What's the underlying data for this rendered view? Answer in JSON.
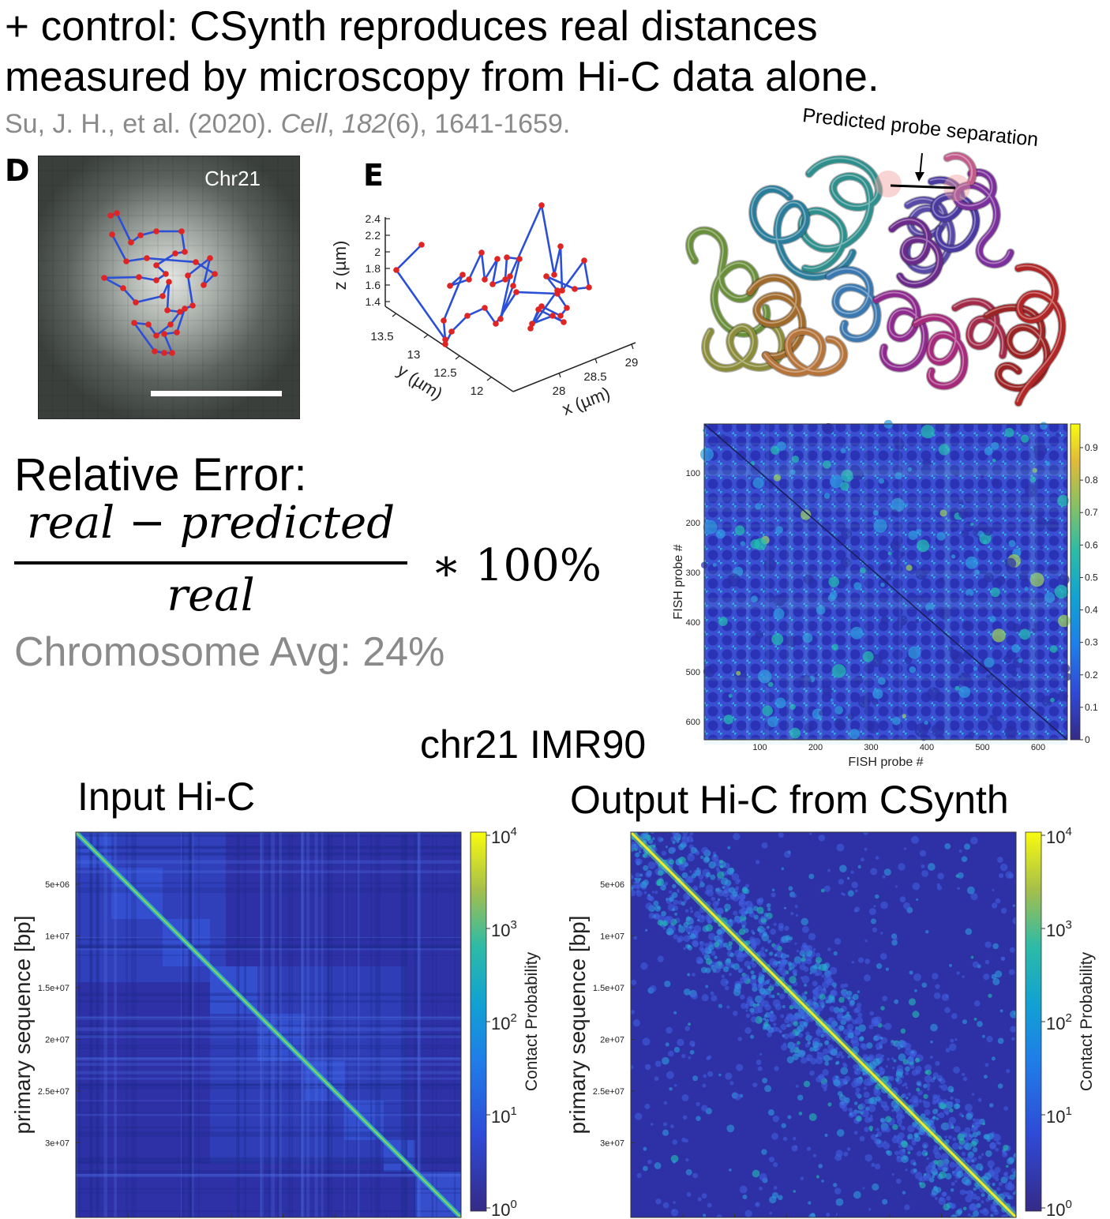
{
  "title_line1": "+ control: CSynth reproduces real distances",
  "title_line2": "measured by microscopy from Hi-C data alone.",
  "citation": {
    "authors": "Su, J. H., et al. (2020). ",
    "journal": "Cell",
    "sep": ", ",
    "volume": "182",
    "rest": "(6), 1641-1659."
  },
  "panel_d": {
    "letter": "D",
    "label": "Chr21"
  },
  "panel_e": {
    "letter": "E",
    "z_label": "z (µm)",
    "y_label": "y (µm)",
    "x_label": "x (µm)",
    "z_ticks": [
      "2.4",
      "2.2",
      "2",
      "1.8",
      "1.6",
      "1.4"
    ],
    "y_ticks": [
      "13.5",
      "13",
      "12.5",
      "12"
    ],
    "x_ticks": [
      "28",
      "28.5",
      "29"
    ]
  },
  "predicted_label": "Predicted probe separation",
  "formula": {
    "heading": "Relative Error:",
    "numerator": "real − predicted",
    "denominator": "real",
    "multiplier": "∗ 100%",
    "average": "Chromosome Avg: 24%"
  },
  "fish_heatmap": {
    "y_label": "FISH probe #",
    "x_label": "FISH probe #",
    "ticks": [
      "100",
      "200",
      "300",
      "400",
      "500",
      "600"
    ],
    "colorbar_ticks": [
      "0.9",
      "0.8",
      "0.7",
      "0.6",
      "0.5",
      "0.4",
      "0.3",
      "0.2",
      "0.1",
      "0"
    ]
  },
  "dataset_label": "chr21 IMR90",
  "hic_input": {
    "heading": "Input Hi-C",
    "x_label": "primary sequence [bp]",
    "y_label": "primary sequence [bp]",
    "ticks": [
      "5e+06",
      "1e+07",
      "1.5e+07",
      "2e+07",
      "2.5e+07",
      "3e+07"
    ],
    "colorbar_label": "Contact Probability",
    "colorbar_ticks": [
      "10",
      "10",
      "10",
      "10",
      "10"
    ],
    "colorbar_exps": [
      "4",
      "3",
      "2",
      "1",
      "0"
    ]
  },
  "hic_output": {
    "heading": "Output Hi-C from CSynth",
    "x_label": "primary sequence [bp]",
    "y_label": "primary sequence [bp]",
    "ticks": [
      "5e+06",
      "1e+07",
      "1.5e+07",
      "2e+07",
      "2.5e+07",
      "3e+07"
    ],
    "colorbar_label": "Contact Probability",
    "colorbar_ticks": [
      "10",
      "10",
      "10",
      "10",
      "10"
    ],
    "colorbar_exps": [
      "4",
      "3",
      "2",
      "1",
      "0"
    ]
  },
  "colors": {
    "heat_low": "#3a34b0",
    "heat_mid": "#2a9ee0",
    "heat_high": "#f5e92a",
    "path_blue": "#2b4fd6",
    "point_red": "#e02424"
  }
}
